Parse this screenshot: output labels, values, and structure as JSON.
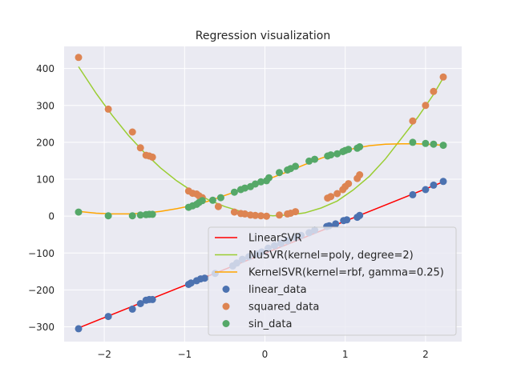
{
  "chart_data": {
    "type": "scatter",
    "title": "Regression visualization",
    "xlabel": "",
    "ylabel": "",
    "xlim": [
      -2.5,
      2.45
    ],
    "ylim": [
      -340,
      460
    ],
    "grid": true,
    "legend_position": "lower-right",
    "x_ticks": [
      -2,
      -1,
      0,
      1,
      2
    ],
    "x_tick_labels": [
      "−2",
      "−1",
      "0",
      "1",
      "2"
    ],
    "y_ticks": [
      -300,
      -200,
      -100,
      0,
      100,
      200,
      300,
      400
    ],
    "y_tick_labels": [
      "−300",
      "−200",
      "−100",
      "0",
      "100",
      "200",
      "300",
      "400"
    ],
    "colors": {
      "background": "#eaeaf2",
      "grid": "#ffffff",
      "linear_data": "#4c72b0",
      "squared_data": "#dd8452",
      "sin_data": "#55a868",
      "LinearSVR": "#ff0000",
      "NuSVR": "#9acd32",
      "KernelSVR": "#ffa500"
    },
    "lines": [
      {
        "name": "LinearSVR",
        "color": "#ff0000",
        "x": [
          -2.32,
          2.22
        ],
        "y": [
          -303,
          93
        ]
      },
      {
        "name": "NuSVR(kernel=poly, degree=2)",
        "color": "#9acd32",
        "x": [
          -2.32,
          -2.1,
          -1.9,
          -1.7,
          -1.5,
          -1.3,
          -1.1,
          -0.9,
          -0.7,
          -0.5,
          -0.3,
          -0.1,
          0.1,
          0.3,
          0.5,
          0.7,
          0.9,
          1.1,
          1.3,
          1.5,
          1.7,
          1.9,
          2.1,
          2.22
        ],
        "y": [
          405,
          332,
          273,
          219,
          172,
          131,
          96,
          67,
          44,
          26,
          13,
          5,
          1,
          3,
          9,
          22,
          41,
          71,
          108,
          155,
          211,
          267,
          330,
          375
        ]
      },
      {
        "name": "KernelSVR(kernel=rbf, gamma=0.25)",
        "color": "#ffa500",
        "x": [
          -2.32,
          -2.1,
          -1.9,
          -1.7,
          -1.5,
          -1.3,
          -1.1,
          -0.9,
          -0.7,
          -0.5,
          -0.3,
          -0.1,
          0.1,
          0.3,
          0.5,
          0.7,
          0.9,
          1.1,
          1.3,
          1.5,
          1.7,
          1.9,
          2.1,
          2.22
        ],
        "y": [
          13,
          8,
          6,
          6,
          8,
          13,
          20,
          29,
          41,
          56,
          71,
          87,
          105,
          122,
          140,
          157,
          171,
          183,
          191,
          195,
          196,
          196,
          194,
          192
        ]
      }
    ],
    "series": [
      {
        "name": "linear_data",
        "color": "#4c72b0",
        "x": [
          -2.32,
          -1.95,
          -1.65,
          -1.55,
          -1.48,
          -1.44,
          -1.4,
          -0.95,
          -0.92,
          -0.85,
          -0.8,
          -0.75,
          -0.62,
          -0.4,
          -0.35,
          -0.28,
          -0.2,
          -0.1,
          -0.04,
          0.04,
          0.12,
          0.2,
          0.28,
          0.38,
          0.45,
          0.55,
          0.62,
          0.77,
          0.8,
          0.88,
          0.98,
          1.02,
          1.15,
          1.18,
          1.84,
          2.0,
          2.1,
          2.22
        ],
        "y": [
          -305,
          -272,
          -252,
          -237,
          -228,
          -226,
          -226,
          -185,
          -181,
          -175,
          -170,
          -168,
          -155,
          -135,
          -127,
          -117,
          -110,
          -103,
          -97,
          -87,
          -80,
          -74,
          -67,
          -58,
          -52,
          -45,
          -38,
          -28,
          -26,
          -21,
          -12,
          -10,
          -3,
          2,
          58,
          72,
          84,
          94
        ]
      },
      {
        "name": "squared_data",
        "color": "#dd8452",
        "x": [
          -2.32,
          -1.95,
          -1.65,
          -1.55,
          -1.48,
          -1.44,
          -1.4,
          -0.95,
          -0.9,
          -0.85,
          -0.82,
          -0.78,
          -0.58,
          -0.38,
          -0.3,
          -0.25,
          -0.18,
          -0.12,
          -0.05,
          0.02,
          0.18,
          0.28,
          0.32,
          0.38,
          0.78,
          0.82,
          0.9,
          0.97,
          1.0,
          1.04,
          1.15,
          1.18,
          1.84,
          2.0,
          2.1,
          2.22
        ],
        "y": [
          430,
          290,
          228,
          185,
          165,
          163,
          160,
          68,
          62,
          60,
          55,
          50,
          26,
          11,
          7,
          6,
          3,
          2,
          1,
          0,
          3,
          6,
          8,
          12,
          49,
          53,
          61,
          72,
          80,
          88,
          102,
          112,
          258,
          300,
          338,
          377
        ]
      },
      {
        "name": "sin_data",
        "color": "#55a868",
        "x": [
          -2.32,
          -1.95,
          -1.65,
          -1.55,
          -1.48,
          -1.44,
          -1.4,
          -0.95,
          -0.9,
          -0.85,
          -0.82,
          -0.78,
          -0.65,
          -0.55,
          -0.38,
          -0.3,
          -0.25,
          -0.18,
          -0.12,
          -0.05,
          0.02,
          0.05,
          0.18,
          0.28,
          0.32,
          0.38,
          0.55,
          0.62,
          0.78,
          0.82,
          0.9,
          0.97,
          1.0,
          1.04,
          1.15,
          1.18,
          1.84,
          2.0,
          2.1,
          2.22
        ],
        "y": [
          11,
          1,
          1,
          3,
          4,
          5,
          5,
          24,
          28,
          32,
          37,
          42,
          43,
          50,
          65,
          72,
          76,
          80,
          87,
          93,
          96,
          104,
          118,
          125,
          129,
          135,
          149,
          154,
          163,
          166,
          169,
          175,
          178,
          181,
          184,
          188,
          200,
          197,
          195,
          192
        ]
      }
    ],
    "legend": [
      {
        "label": "LinearSVR",
        "kind": "line",
        "color": "#ff0000"
      },
      {
        "label": "NuSVR(kernel=poly, degree=2)",
        "kind": "line",
        "color": "#9acd32"
      },
      {
        "label": "KernelSVR(kernel=rbf, gamma=0.25)",
        "kind": "line",
        "color": "#ffa500"
      },
      {
        "label": "linear_data",
        "kind": "marker",
        "color": "#4c72b0"
      },
      {
        "label": "squared_data",
        "kind": "marker",
        "color": "#dd8452"
      },
      {
        "label": "sin_data",
        "kind": "marker",
        "color": "#55a868"
      }
    ]
  }
}
